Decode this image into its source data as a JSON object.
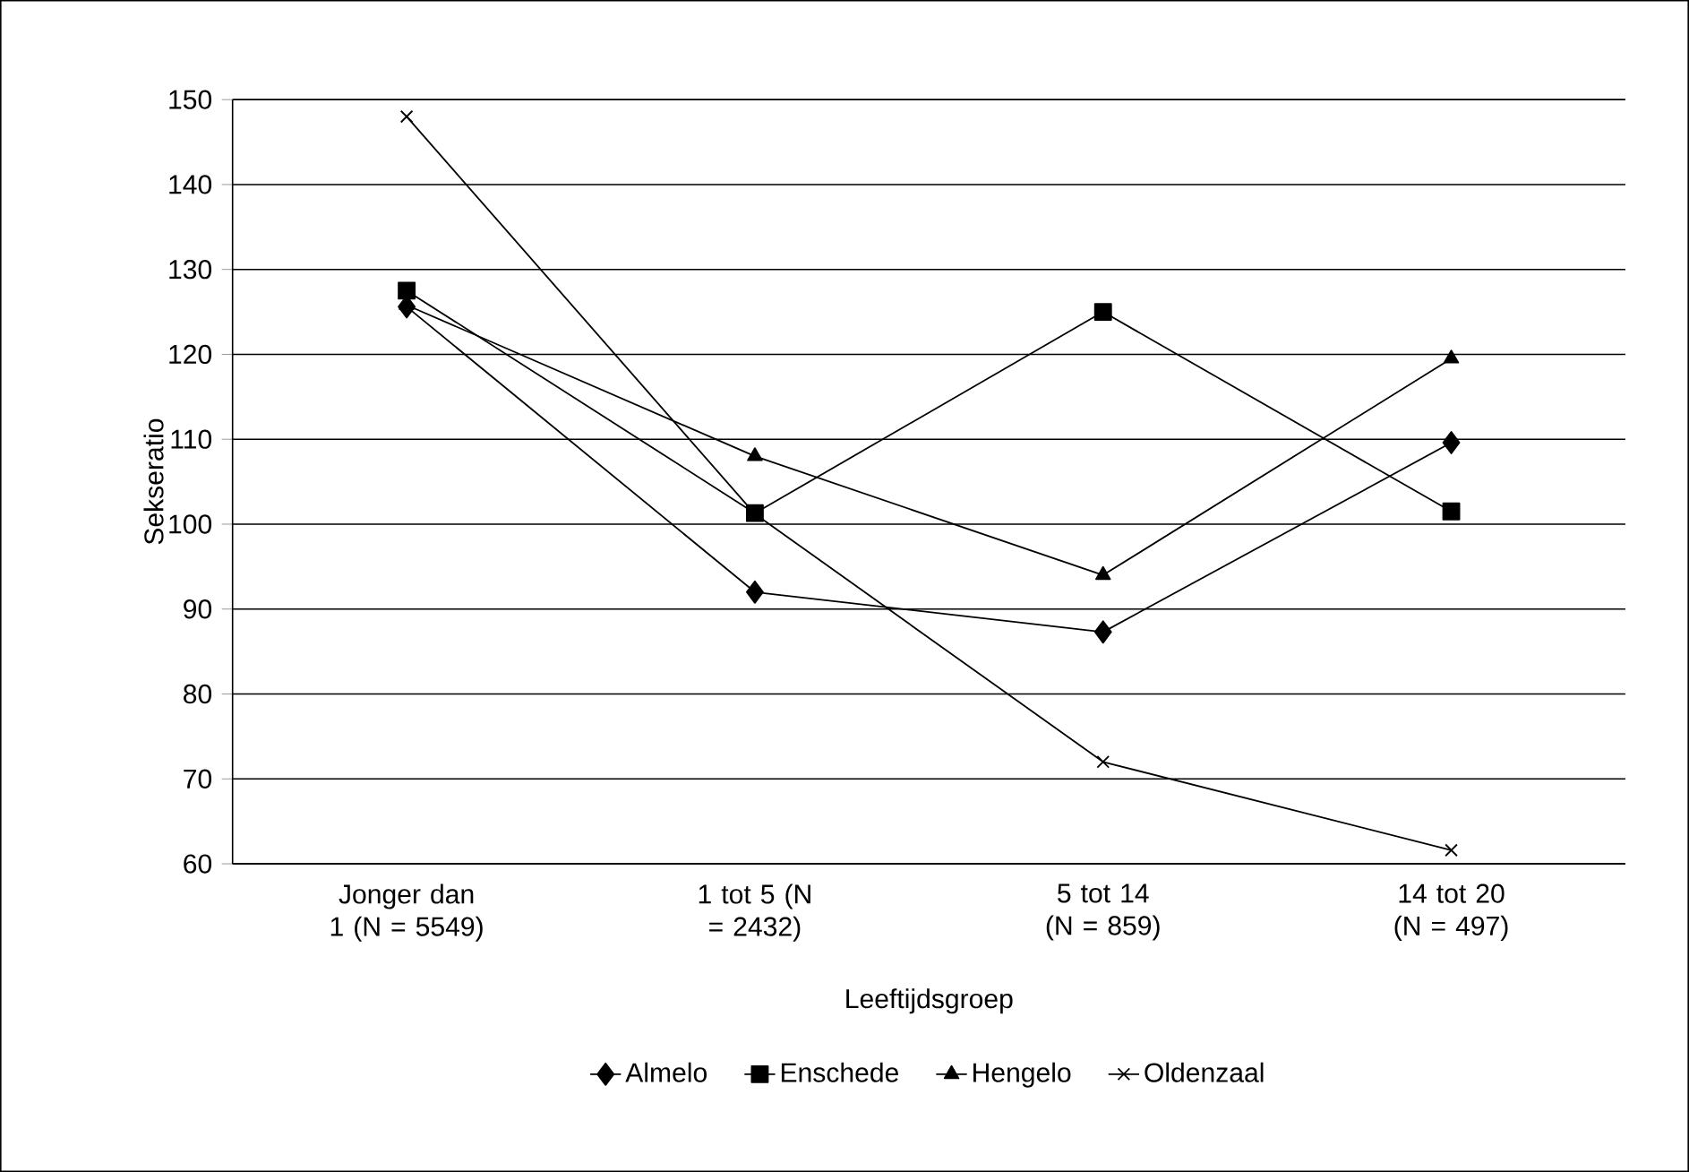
{
  "chart_data": {
    "type": "line",
    "xlabel": "Leeftijdsgroep",
    "ylabel": "Sekseratio",
    "categories": [
      "Jonger dan 1 (N = 5549)",
      "1 tot 5 (N = 2432)",
      "5 tot 14 (N = 859)",
      "14 tot 20 (N = 497)"
    ],
    "series": [
      {
        "name": "Almelo",
        "color": "#000000",
        "marker": "diamond",
        "values": [
          125.6,
          92,
          87.3,
          109.6
        ]
      },
      {
        "name": "Enschede",
        "color": "#000000",
        "marker": "square",
        "values": [
          127.5,
          101.3,
          125,
          101.5
        ]
      },
      {
        "name": "Hengelo",
        "color": "#000000",
        "marker": "triangle",
        "values": [
          125.8,
          108,
          94,
          119.5
        ]
      },
      {
        "name": "Oldenzaal",
        "color": "#000000",
        "marker": "cross",
        "values": [
          148,
          101.2,
          72,
          61.6
        ]
      }
    ],
    "ylim": [
      60,
      150
    ],
    "yticks": [
      60,
      70,
      80,
      90,
      100,
      110,
      120,
      130,
      140,
      150
    ],
    "grid": "y",
    "legend": "bottom",
    "line_style": "solid"
  }
}
